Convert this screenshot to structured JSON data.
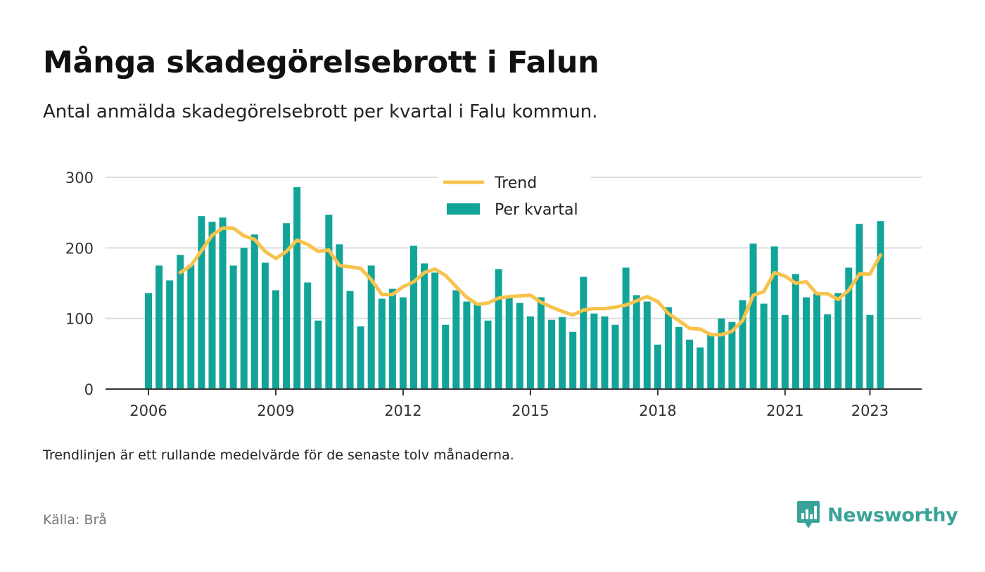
{
  "title": "Många skadegörelsebrott i Falun",
  "subtitle": "Antal anmälda skadegörelsebrott per kvartal i Falu kommun.",
  "note": "Trendlinjen är ett rullande medelvärde för de senaste tolv månaderna.",
  "source": "Källa: Brå",
  "brand": {
    "name": "Newsworthy",
    "icon": "newsworthy-logo-icon",
    "color": "#3aa399"
  },
  "colors": {
    "bar": "#12a499",
    "trend": "#f7c34c",
    "grid": "#dddddd",
    "axis": "#333333"
  },
  "chart_data": {
    "type": "bar",
    "x_start_year": 2006,
    "x_start_quarter": 1,
    "y_ticks": [
      0,
      100,
      200,
      300
    ],
    "x_ticks": [
      "2006",
      "2009",
      "2012",
      "2015",
      "2018",
      "2021",
      "2023"
    ],
    "ylim": [
      0,
      300
    ],
    "grid": true,
    "legend_position": "top-center",
    "series": [
      {
        "name": "Per kvartal",
        "type": "bar",
        "values": [
          136,
          175,
          154,
          190,
          176,
          245,
          237,
          243,
          175,
          200,
          219,
          179,
          140,
          235,
          286,
          151,
          97,
          247,
          205,
          139,
          89,
          175,
          128,
          142,
          130,
          203,
          178,
          165,
          91,
          140,
          124,
          121,
          97,
          170,
          130,
          122,
          103,
          130,
          98,
          102,
          81,
          159,
          107,
          103,
          91,
          172,
          133,
          124,
          63,
          116,
          88,
          70,
          59,
          78,
          100,
          95,
          126,
          206,
          121,
          202,
          105,
          163,
          130,
          135,
          106,
          136,
          172,
          234,
          105,
          238
        ]
      },
      {
        "name": "Trend",
        "type": "line",
        "values": [
          null,
          null,
          null,
          165,
          175,
          196,
          218,
          228,
          228,
          217,
          212,
          195,
          185,
          195,
          211,
          205,
          195,
          197,
          175,
          173,
          171,
          155,
          134,
          134,
          145,
          152,
          165,
          170,
          161,
          145,
          130,
          120,
          122,
          129,
          131,
          132,
          133,
          123,
          116,
          110,
          105,
          112,
          114,
          114,
          116,
          119,
          125,
          131,
          124,
          107,
          97,
          86,
          85,
          77,
          77,
          82,
          97,
          133,
          138,
          165,
          160,
          150,
          152,
          135,
          135,
          127,
          140,
          163,
          163,
          190
        ]
      }
    ]
  }
}
